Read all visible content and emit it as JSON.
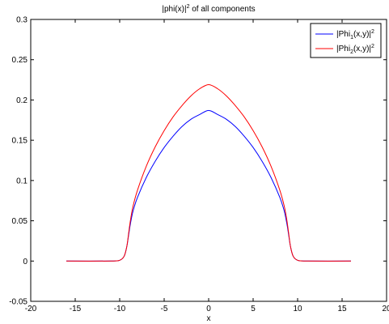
{
  "chart_data": {
    "type": "line",
    "title": "|phi(x)|^2 of all components",
    "title_parts": {
      "base": "|phi(x)|",
      "sup": "2",
      "rest": " of all components"
    },
    "xlabel": "x",
    "ylabel": "",
    "xlim": [
      -20,
      20
    ],
    "ylim": [
      -0.05,
      0.3
    ],
    "xticks": [
      -20,
      -15,
      -10,
      -5,
      0,
      5,
      10,
      15,
      20
    ],
    "yticks": [
      -0.05,
      0,
      0.05,
      0.1,
      0.15,
      0.2,
      0.25,
      0.3
    ],
    "grid": false,
    "legend_position": "top-right",
    "series": [
      {
        "name": "|Phi_1(x,y)|^2",
        "legend": {
          "base": "|Phi",
          "sub": "1",
          "mid": "(x,y)|",
          "sup": "2"
        },
        "color": "#0000ff",
        "x": [
          -16,
          -11,
          -10,
          -9.5,
          -9.2,
          -9,
          -8.8,
          -8.5,
          -8,
          -7,
          -6,
          -5,
          -4,
          -3,
          -2,
          -1,
          0,
          1,
          2,
          3,
          4,
          5,
          6,
          7,
          8,
          8.5,
          8.8,
          9,
          9.2,
          9.5,
          10,
          11,
          16
        ],
        "y": [
          0,
          0,
          0.001,
          0.006,
          0.018,
          0.032,
          0.046,
          0.062,
          0.079,
          0.104,
          0.124,
          0.141,
          0.155,
          0.167,
          0.176,
          0.182,
          0.187,
          0.182,
          0.176,
          0.167,
          0.155,
          0.141,
          0.124,
          0.104,
          0.079,
          0.062,
          0.046,
          0.032,
          0.018,
          0.006,
          0.001,
          0,
          0
        ]
      },
      {
        "name": "|Phi_2(x,y)|^2",
        "legend": {
          "base": "|Phi",
          "sub": "2",
          "mid": "(x,y)|",
          "sup": "2"
        },
        "color": "#ff0000",
        "x": [
          -16,
          -11,
          -10,
          -9.5,
          -9.2,
          -9,
          -8.8,
          -8.5,
          -8,
          -7,
          -6,
          -5,
          -4,
          -3,
          -2,
          -1,
          0,
          1,
          2,
          3,
          4,
          5,
          6,
          7,
          8,
          8.5,
          8.8,
          9,
          9.2,
          9.5,
          10,
          11,
          16
        ],
        "y": [
          0,
          0,
          0.001,
          0.006,
          0.018,
          0.034,
          0.05,
          0.068,
          0.088,
          0.118,
          0.142,
          0.162,
          0.179,
          0.193,
          0.205,
          0.214,
          0.219,
          0.214,
          0.205,
          0.193,
          0.179,
          0.162,
          0.142,
          0.118,
          0.088,
          0.068,
          0.05,
          0.034,
          0.018,
          0.006,
          0.001,
          0,
          0
        ]
      }
    ]
  }
}
